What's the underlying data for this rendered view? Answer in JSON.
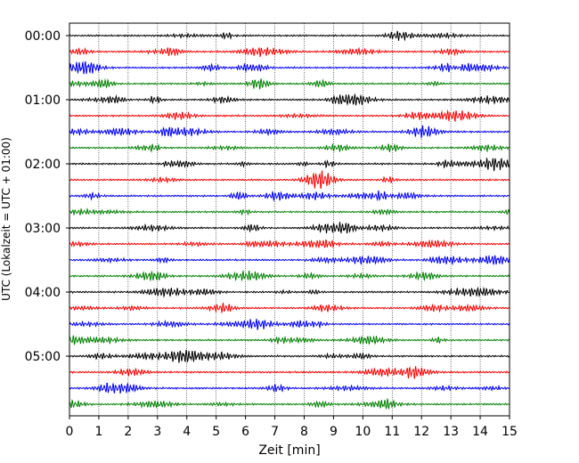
{
  "chart_data": {
    "type": "line",
    "title": "",
    "xlabel": "Zeit  [min]",
    "ylabel": "UTC (Lokalzeit = UTC + 01:00)",
    "xlim": [
      0,
      15
    ],
    "x_ticks": [
      "0",
      "1",
      "2",
      "3",
      "4",
      "5",
      "6",
      "7",
      "8",
      "9",
      "10",
      "11",
      "12",
      "13",
      "14",
      "15"
    ],
    "y_ticks": [
      {
        "label": "00:00",
        "trace": 0
      },
      {
        "label": "01:00",
        "trace": 4
      },
      {
        "label": "02:00",
        "trace": 8
      },
      {
        "label": "03:00",
        "trace": 12
      },
      {
        "label": "04:00",
        "trace": 16
      },
      {
        "label": "05:00",
        "trace": 20
      }
    ],
    "trace_interval_min": 15,
    "trace_count": 24,
    "trace_colors": [
      "#000000",
      "#ff0000",
      "#0000ff",
      "#008000"
    ],
    "grid": "vertical-dotted",
    "series_note_hidden": true
  }
}
